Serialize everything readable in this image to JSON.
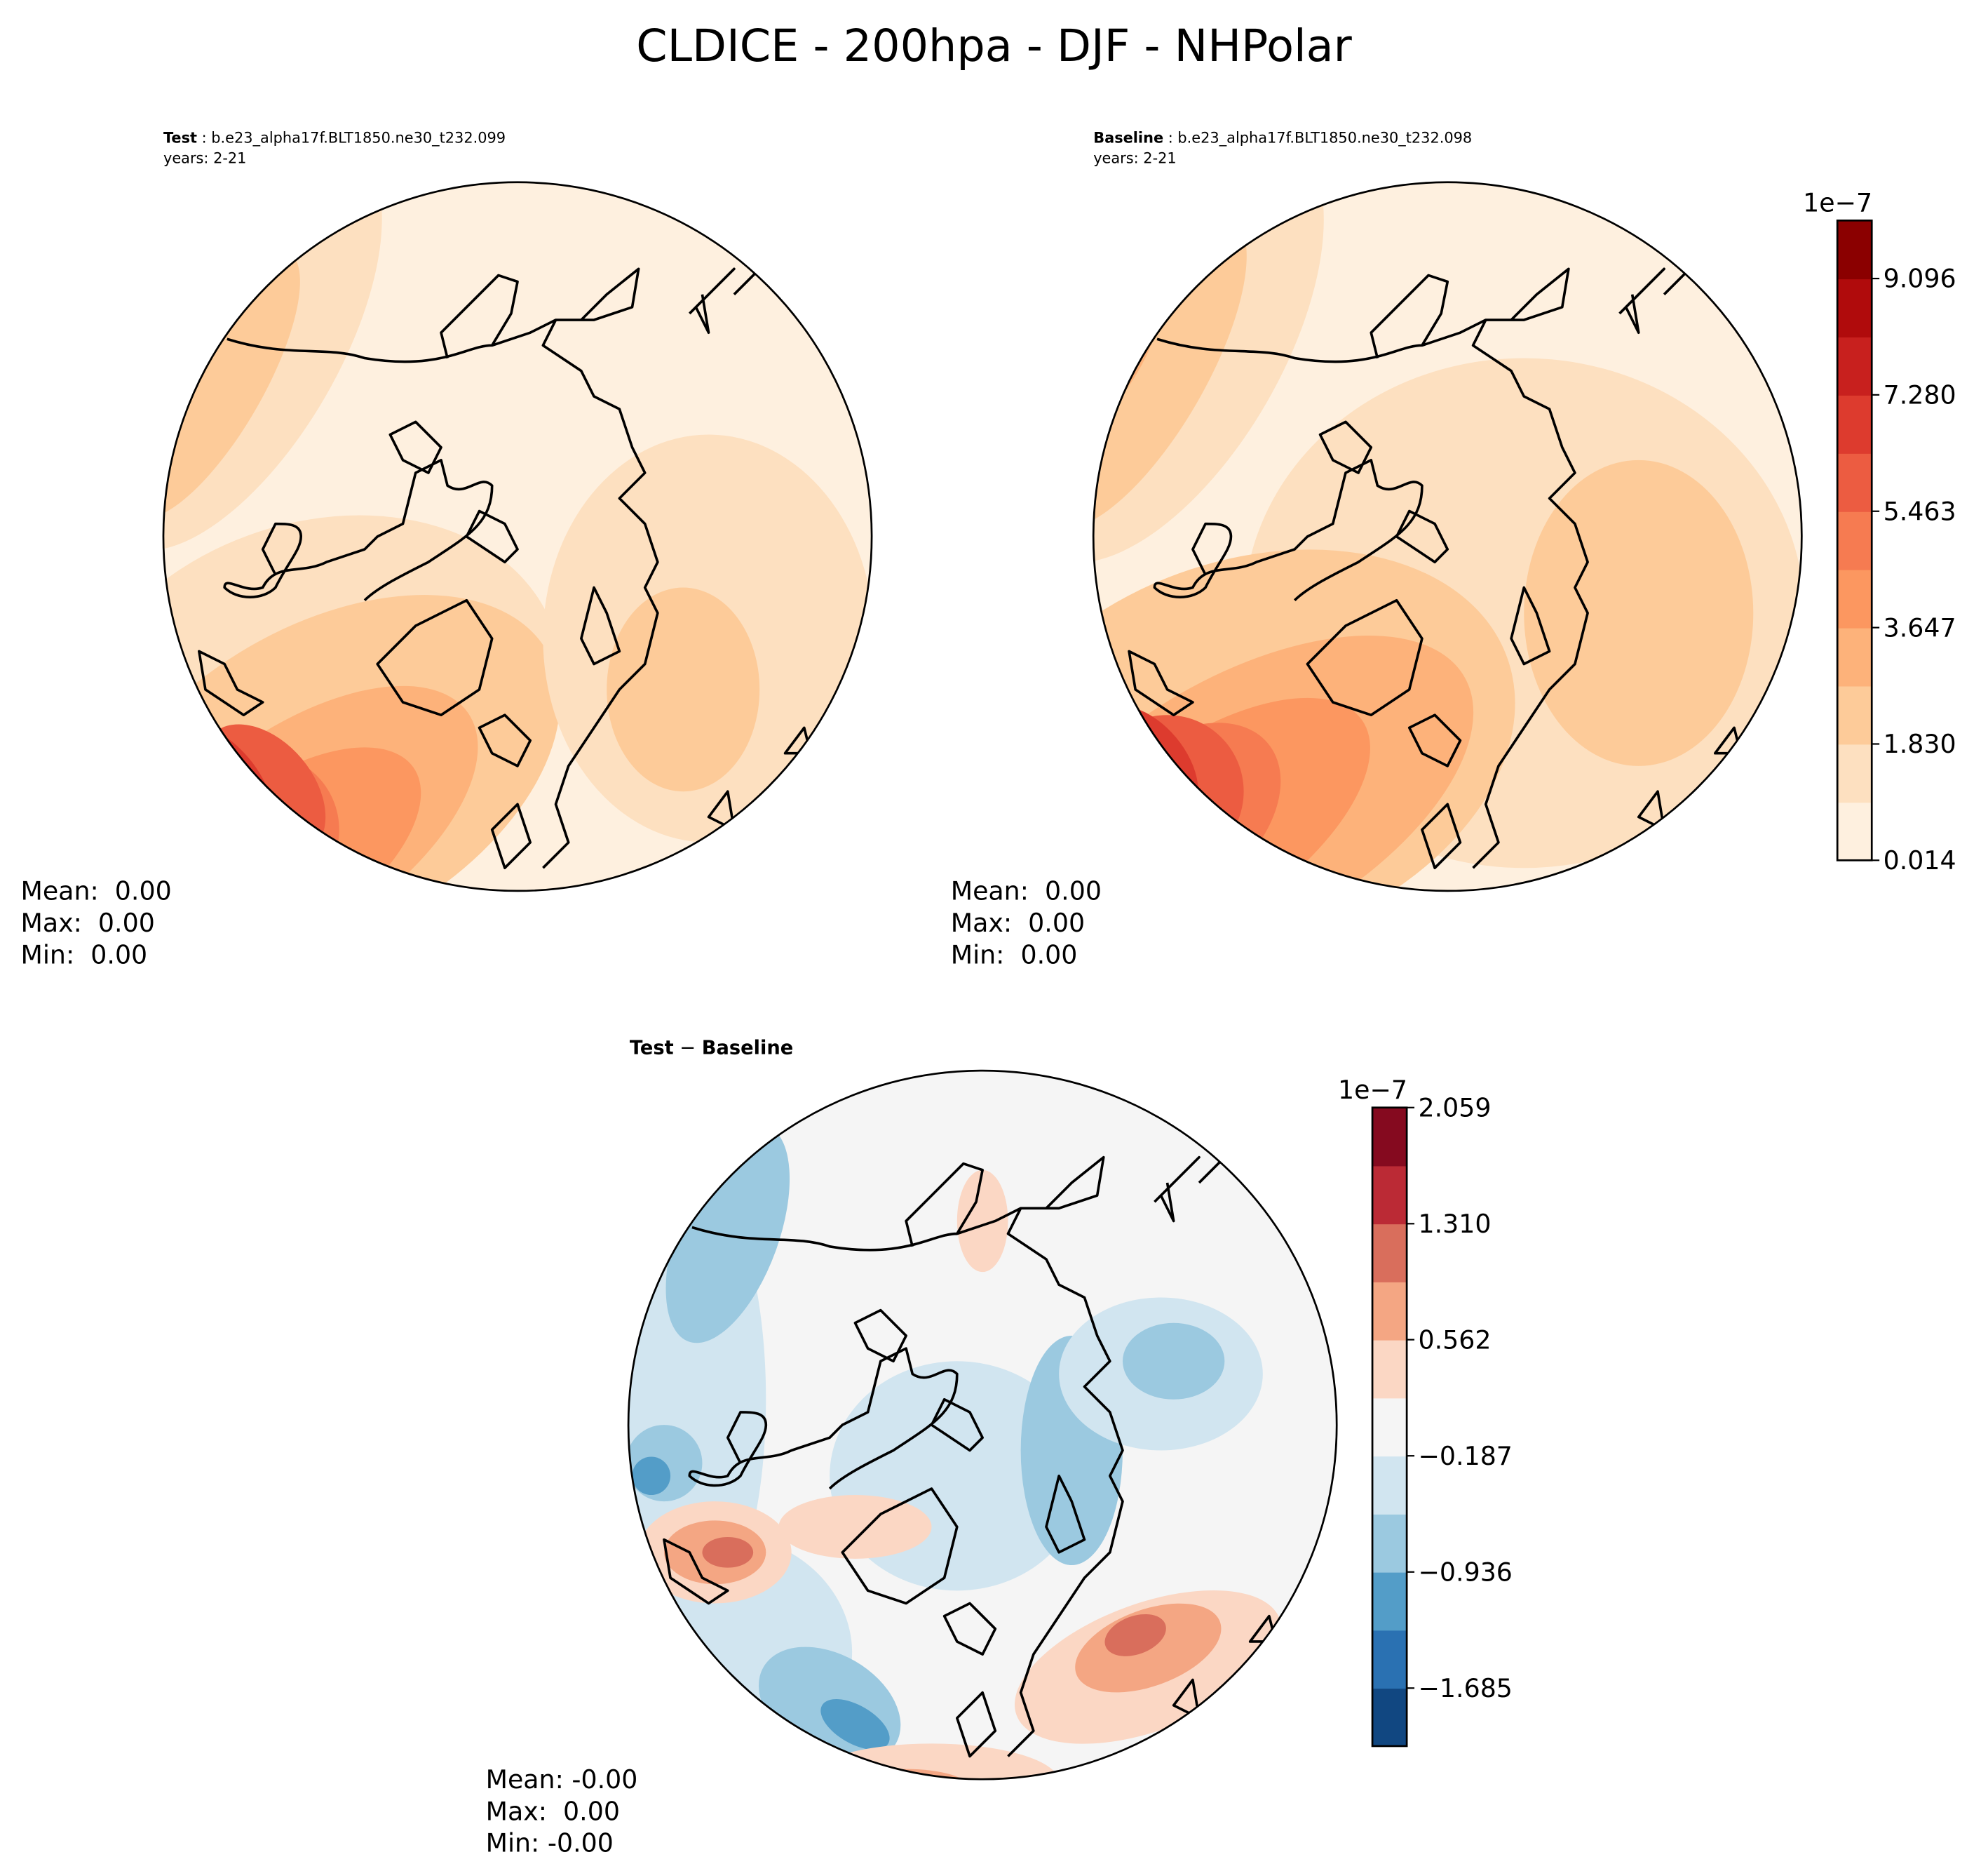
{
  "title": "CLDICE - 200hpa - DJF - NHPolar",
  "panels": [
    {
      "name": "Test",
      "case": " : b.e23_alpha17f.BLT1850.ne30_t232.099",
      "years": "years: 2-21",
      "stats": [
        "Mean:  0.00",
        "Max:  0.00",
        "Min:  0.00"
      ]
    },
    {
      "name": "Baseline",
      "case": " : b.e23_alpha17f.BLT1850.ne30_t232.098",
      "years": "years: 2-21",
      "stats": [
        "Mean:  0.00",
        "Max:  0.00",
        "Min:  0.00"
      ]
    },
    {
      "name": "Test",
      "operator": " − ",
      "name2": "Baseline",
      "stats": [
        "Mean: -0.00",
        "Max:  0.00",
        "Min: -0.00"
      ]
    }
  ],
  "colorbars": [
    {
      "exponent": "1e−7",
      "lim": [
        0.014,
        10.002
      ],
      "ticks": [
        {
          "value": 0.014,
          "label": "0.014"
        },
        {
          "value": 1.83,
          "label": "1.830"
        },
        {
          "value": 3.647,
          "label": "3.647"
        },
        {
          "value": 5.463,
          "label": "5.463"
        },
        {
          "value": 7.28,
          "label": "7.280"
        },
        {
          "value": 9.096,
          "label": "9.096"
        }
      ],
      "colors": [
        "#fef0df",
        "#fde0c0",
        "#fdcb99",
        "#fdb27a",
        "#fc9760",
        "#f67b51",
        "#ec5c41",
        "#dd3b2e",
        "#c8201e",
        "#b00b0c",
        "#8b0000"
      ]
    },
    {
      "exponent": "1e−7",
      "lim": [
        -2.059,
        2.059
      ],
      "ticks": [
        {
          "value": -1.685,
          "label": "−1.685"
        },
        {
          "value": -0.936,
          "label": "−0.936"
        },
        {
          "value": -0.187,
          "label": "−0.187"
        },
        {
          "value": 0.562,
          "label": "0.562"
        },
        {
          "value": 1.31,
          "label": "1.310"
        },
        {
          "value": 2.059,
          "label": "2.059"
        }
      ],
      "colors": [
        "#114781",
        "#2a71b2",
        "#539dc8",
        "#9bc9e0",
        "#d1e5f0",
        "#f5f5f5",
        "#fbd7c4",
        "#f4a683",
        "#d96e5c",
        "#bb2a35",
        "#850a1f"
      ]
    }
  ]
}
